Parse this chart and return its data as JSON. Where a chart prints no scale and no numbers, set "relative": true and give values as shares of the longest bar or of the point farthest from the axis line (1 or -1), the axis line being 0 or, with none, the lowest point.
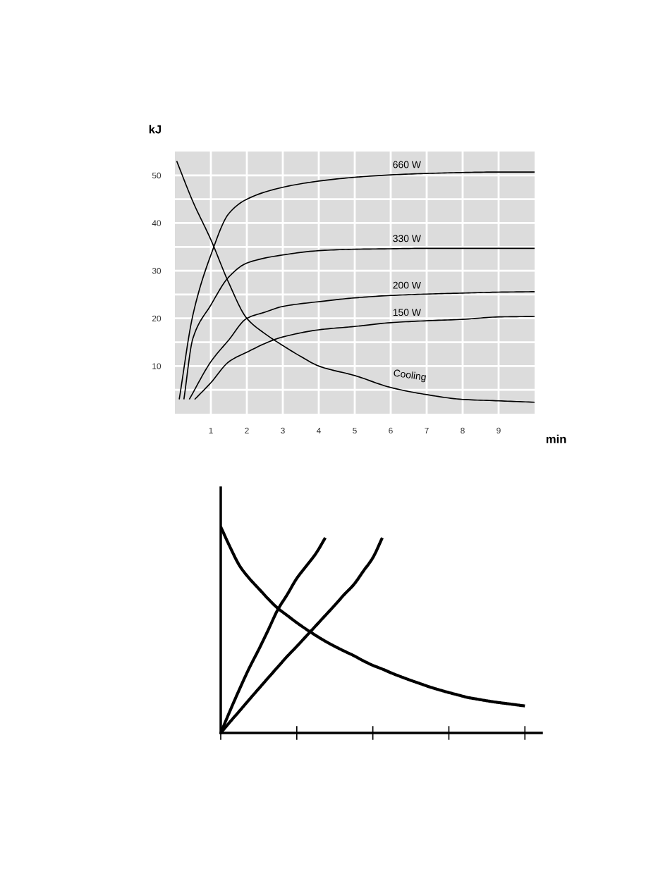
{
  "chart_data": [
    {
      "type": "line",
      "xlabel": "min",
      "ylabel": "kJ",
      "xlim": [
        0,
        10
      ],
      "ylim": [
        0,
        55
      ],
      "xticks": [
        1,
        2,
        3,
        4,
        5,
        6,
        7,
        8,
        9
      ],
      "yticks": [
        {
          "value": 5,
          "label": null
        },
        10,
        {
          "value": 15,
          "label": null
        },
        20,
        {
          "value": 25,
          "label": null
        },
        30,
        {
          "value": 35,
          "label": null
        },
        40,
        {
          "value": 45,
          "label": null
        },
        50
      ],
      "grid": true,
      "legend": false,
      "marker": "none",
      "line_style": "solid",
      "series": [
        {
          "name": "660 W",
          "color": "#000000",
          "x": [
            0.12,
            0.5,
            1,
            1.5,
            2,
            3,
            4,
            5,
            6,
            7,
            8,
            9,
            10
          ],
          "values": [
            3,
            20.7,
            33.3,
            42,
            45,
            47.5,
            48.8,
            49.6,
            50.1,
            50.4,
            50.6,
            50.7,
            50.7
          ]
        },
        {
          "name": "330 W",
          "color": "#000000",
          "x": [
            0.25,
            0.5,
            1,
            1.5,
            2,
            3,
            4,
            5,
            6,
            7,
            8,
            9,
            10
          ],
          "values": [
            3,
            15.8,
            22.8,
            28.7,
            31.6,
            33.3,
            34.2,
            34.5,
            34.6,
            34.7,
            34.7,
            34.7,
            34.7
          ]
        },
        {
          "name": "200 W",
          "color": "#000000",
          "x": [
            0.4,
            1,
            1.5,
            2,
            2.5,
            3,
            4,
            5,
            6,
            7,
            8,
            9,
            10
          ],
          "values": [
            3,
            10.9,
            15.5,
            20,
            21.3,
            22.5,
            23.5,
            24.3,
            24.8,
            25.1,
            25.3,
            25.5,
            25.6
          ]
        },
        {
          "name": "150 W",
          "color": "#000000",
          "x": [
            0.55,
            1,
            1.5,
            2,
            2.75,
            3,
            4,
            5,
            6,
            7,
            8,
            9,
            10
          ],
          "values": [
            3,
            6.5,
            10.9,
            12.9,
            15.5,
            16.1,
            17.6,
            18.3,
            19.1,
            19.5,
            19.8,
            20.3,
            20.4
          ]
        },
        {
          "name": "Cooling",
          "color": "#000000",
          "x": [
            0.05,
            0.5,
            1,
            1.5,
            2,
            2.5,
            3,
            3.5,
            4,
            5,
            6,
            7,
            8,
            9,
            10
          ],
          "values": [
            53,
            44.5,
            36.5,
            27.4,
            20,
            16.8,
            14.3,
            12,
            10,
            8,
            5.5,
            4,
            3,
            2.7,
            2.4
          ]
        }
      ]
    },
    {
      "type": "line",
      "relative": true,
      "categories": [
        null,
        null,
        null,
        null,
        null,
        null,
        null,
        null,
        null,
        null,
        null,
        null,
        null,
        null,
        null,
        null,
        null,
        null,
        null,
        null,
        null,
        null,
        null,
        null,
        null,
        null,
        null,
        null,
        null,
        null,
        null,
        null,
        null
      ],
      "marker": "none",
      "line_style": "solid",
      "series": [
        {
          "color": "#000000",
          "values": [
            1,
            0.9,
            0.81,
            0.75,
            0.7,
            0.65,
            0.605,
            0.57,
            0.535,
            0.503,
            0.473,
            0.445,
            0.42,
            0.397,
            0.375,
            0.35,
            0.328,
            0.31,
            0.29,
            0.272,
            0.255,
            0.239,
            0.223,
            0.209,
            0.196,
            0.184,
            0.172,
            0.164,
            0.156,
            0.149,
            0.143,
            0.137,
            0.131
          ]
        },
        {
          "color": "#000000",
          "values": [
            0,
            0.11,
            0.215,
            0.315,
            0.405,
            0.5,
            0.598,
            0.672,
            0.75,
            0.81,
            0.87,
            0.947,
            null,
            null,
            null,
            null,
            null,
            null,
            null,
            null,
            null,
            null,
            null,
            null,
            null,
            null,
            null,
            null,
            null,
            null,
            null,
            null,
            null
          ]
        },
        {
          "color": "#000000",
          "values": [
            0,
            0.055,
            0.108,
            0.162,
            0.215,
            0.268,
            0.32,
            0.372,
            0.42,
            0.47,
            0.52,
            0.57,
            0.62,
            0.672,
            0.72,
            0.785,
            0.85,
            0.947,
            null,
            null,
            null,
            null,
            null,
            null,
            null,
            null,
            null,
            null,
            null,
            null,
            null,
            null,
            null
          ]
        }
      ]
    }
  ]
}
